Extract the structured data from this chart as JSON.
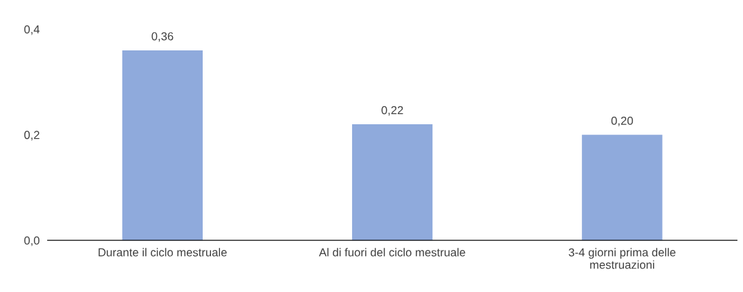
{
  "chart_data": {
    "type": "bar",
    "categories": [
      "Durante il ciclo mestruale",
      "Al di fuori del ciclo mestruale",
      "3-4 giorni prima delle\nmestruazioni"
    ],
    "values": [
      0.36,
      0.22,
      0.2
    ],
    "value_labels": [
      "0,36",
      "0,22",
      "0,20"
    ],
    "color": "#8faadc",
    "ylim": [
      0,
      0.4
    ],
    "yticks": [
      {
        "value": 0,
        "label": "0,0"
      },
      {
        "value": 0.2,
        "label": "0,2"
      },
      {
        "value": 0.4,
        "label": "0,4"
      }
    ],
    "grid": false,
    "legend": false
  }
}
